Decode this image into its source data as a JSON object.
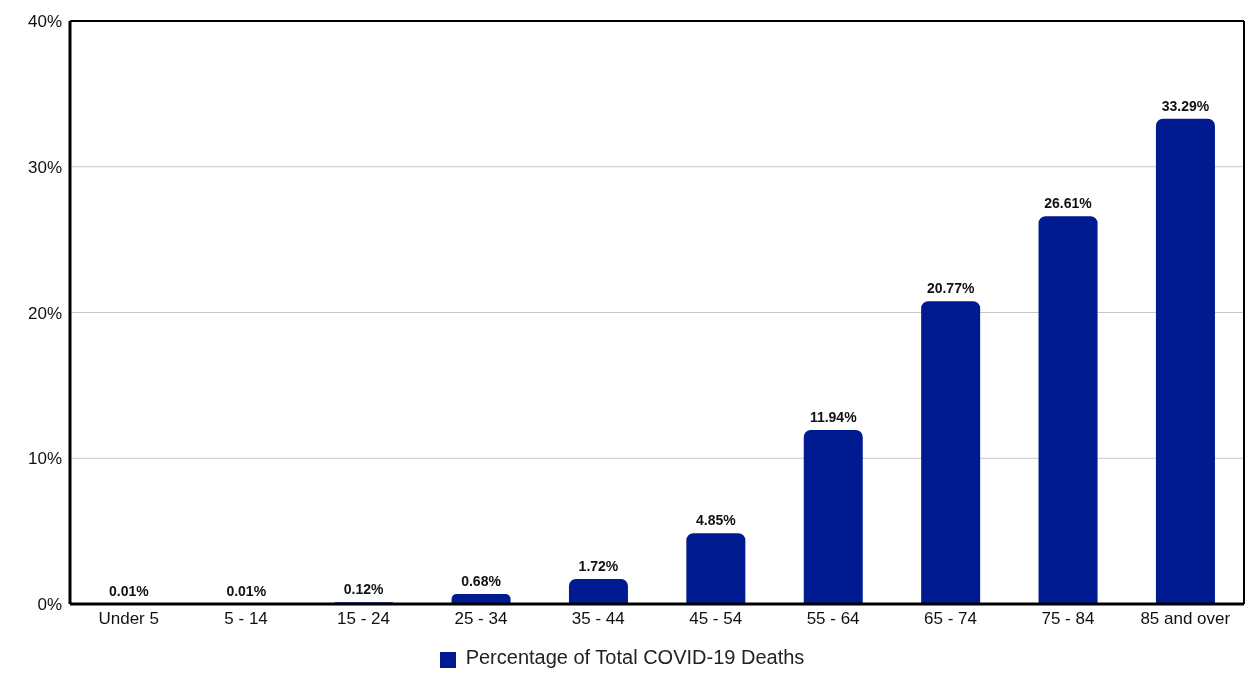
{
  "chart_data": {
    "type": "bar",
    "categories": [
      "Under 5",
      "5 - 14",
      "15 - 24",
      "25 - 34",
      "35 - 44",
      "45 - 54",
      "55 - 64",
      "65 - 74",
      "75 - 84",
      "85 and over"
    ],
    "series": [
      {
        "name": "Percentage of Total COVID-19 Deaths",
        "color": "#001a8f",
        "values": [
          0.01,
          0.01,
          0.12,
          0.68,
          1.72,
          4.85,
          11.94,
          20.77,
          26.61,
          33.29
        ],
        "value_labels": [
          "0.01%",
          "0.01%",
          "0.12%",
          "0.68%",
          "1.72%",
          "4.85%",
          "11.94%",
          "20.77%",
          "26.61%",
          "33.29%"
        ]
      }
    ],
    "ylim": [
      0,
      40
    ],
    "yticks": [
      {
        "value": 0,
        "label": "0%"
      },
      {
        "value": 10,
        "label": "10%"
      },
      {
        "value": 20,
        "label": "20%"
      },
      {
        "value": 30,
        "label": "30%"
      },
      {
        "value": 40,
        "label": "40%"
      }
    ],
    "grid": "y",
    "legend": "bottom"
  }
}
